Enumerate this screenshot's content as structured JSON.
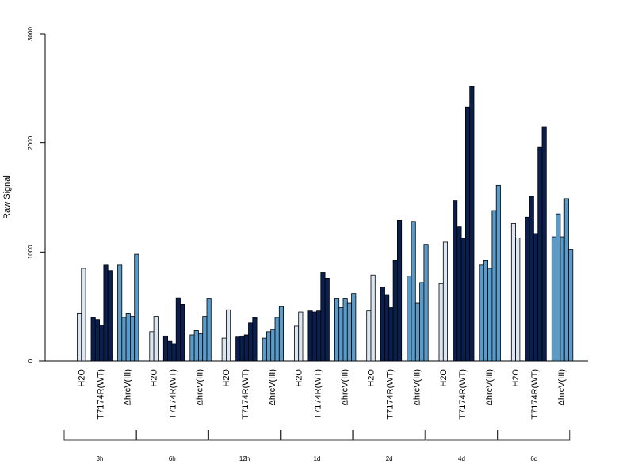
{
  "chart_data": {
    "type": "bar",
    "ylabel": "Raw Signal",
    "ylim": [
      0,
      3000
    ],
    "yticks": [
      0,
      1000,
      2000,
      3000
    ],
    "grid": false,
    "colors": {
      "H2O": "#dce6f2",
      "T7174R(WT)": "#0b1f4f",
      "ΔhrcV(III)": "#5b9bc9"
    },
    "groups": [
      {
        "label": "3h",
        "conditions": [
          {
            "name": "H2O",
            "values": [
              440,
              850
            ]
          },
          {
            "name": "T7174R(WT)",
            "values": [
              400,
              380,
              330,
              880,
              830
            ]
          },
          {
            "name": "ΔhrcV(III)",
            "values": [
              880,
              400,
              440,
              410,
              980
            ]
          }
        ]
      },
      {
        "label": "6h",
        "conditions": [
          {
            "name": "H2O",
            "values": [
              270,
              410
            ]
          },
          {
            "name": "T7174R(WT)",
            "values": [
              230,
              180,
              160,
              580,
              520
            ]
          },
          {
            "name": "ΔhrcV(III)",
            "values": [
              240,
              280,
              250,
              410,
              570
            ]
          }
        ]
      },
      {
        "label": "12h",
        "conditions": [
          {
            "name": "H2O",
            "values": [
              210,
              470
            ]
          },
          {
            "name": "T7174R(WT)",
            "values": [
              220,
              230,
              240,
              350,
              400
            ]
          },
          {
            "name": "ΔhrcV(III)",
            "values": [
              210,
              270,
              290,
              400,
              500
            ]
          }
        ]
      },
      {
        "label": "1d",
        "conditions": [
          {
            "name": "H2O",
            "values": [
              320,
              450
            ]
          },
          {
            "name": "T7174R(WT)",
            "values": [
              460,
              450,
              460,
              810,
              760
            ]
          },
          {
            "name": "ΔhrcV(III)",
            "values": [
              570,
              490,
              570,
              530,
              620
            ]
          }
        ]
      },
      {
        "label": "2d",
        "conditions": [
          {
            "name": "H2O",
            "values": [
              460,
              790
            ]
          },
          {
            "name": "T7174R(WT)",
            "values": [
              680,
              610,
              490,
              920,
              1290
            ]
          },
          {
            "name": "ΔhrcV(III)",
            "values": [
              780,
              1280,
              530,
              720,
              1070
            ]
          }
        ]
      },
      {
        "label": "4d",
        "conditions": [
          {
            "name": "H2O",
            "values": [
              710,
              1090
            ]
          },
          {
            "name": "T7174R(WT)",
            "values": [
              1470,
              1230,
              1130,
              2330,
              2520
            ]
          },
          {
            "name": "ΔhrcV(III)",
            "values": [
              880,
              920,
              850,
              1380,
              1610
            ]
          }
        ]
      },
      {
        "label": "6d",
        "conditions": [
          {
            "name": "H2O",
            "values": [
              1260,
              1130
            ]
          },
          {
            "name": "T7174R(WT)",
            "values": [
              1320,
              1510,
              1170,
              1960,
              2150
            ]
          },
          {
            "name": "ΔhrcV(III)",
            "values": [
              1140,
              1350,
              1140,
              1490,
              1020
            ]
          }
        ]
      }
    ]
  }
}
